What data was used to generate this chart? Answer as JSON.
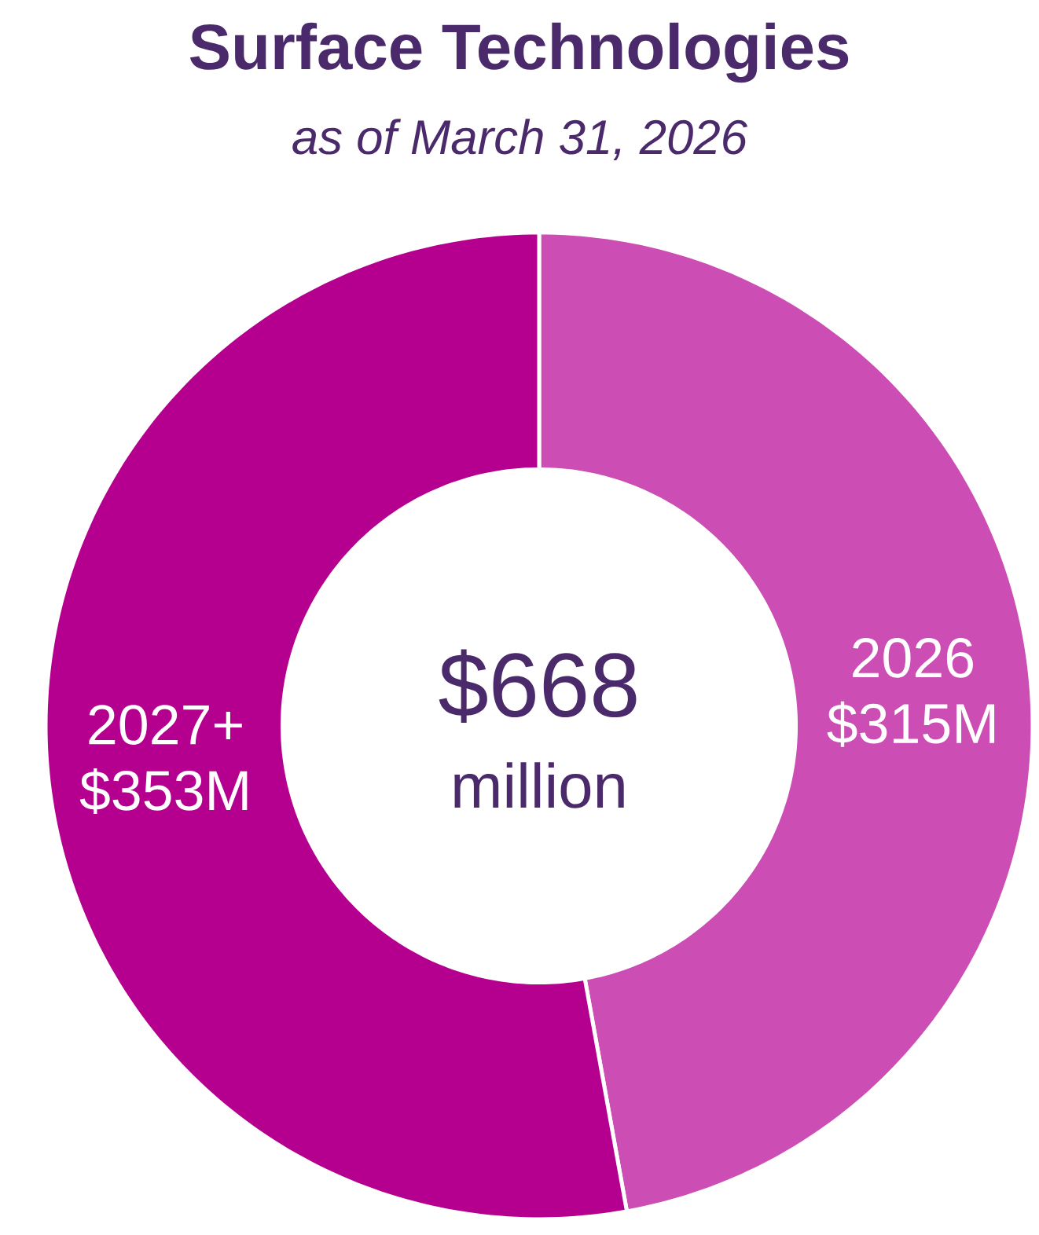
{
  "chart_data": {
    "type": "donut",
    "title": "Surface Technologies",
    "subtitle": "as of March 31, 2026",
    "categories": [
      "2026",
      "2027+"
    ],
    "values": [
      315,
      353
    ],
    "colors": [
      "#cc4db3",
      "#b5008f"
    ],
    "value_labels": [
      "$315M",
      "$353M"
    ],
    "annotations": [
      "$668",
      "million"
    ]
  }
}
